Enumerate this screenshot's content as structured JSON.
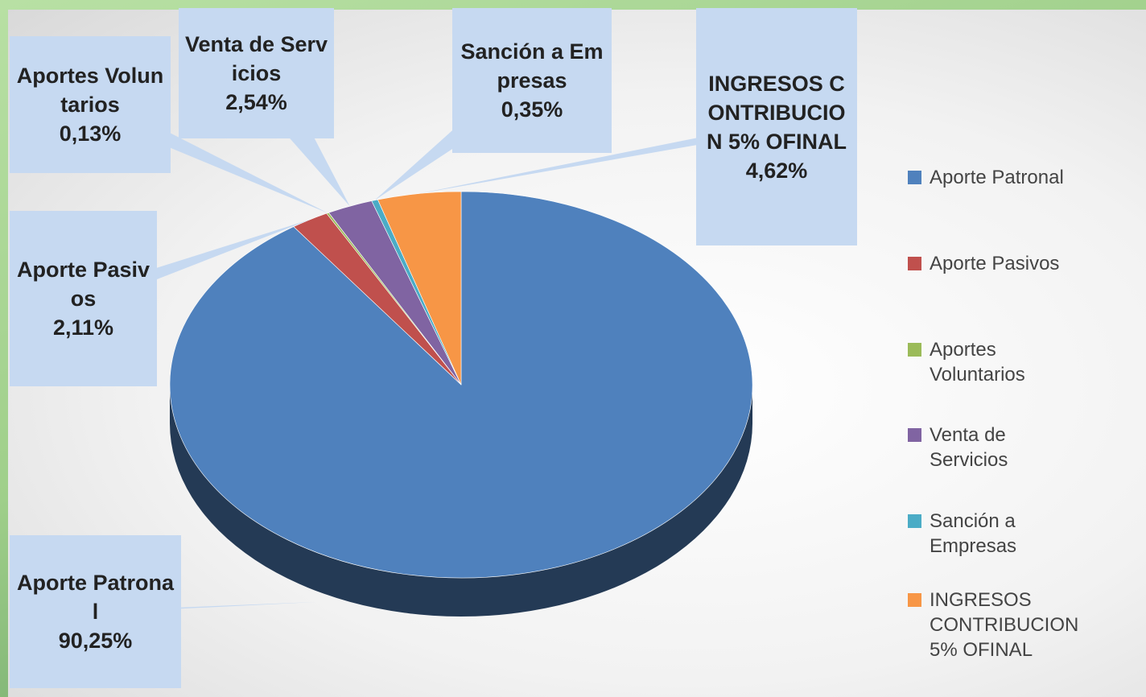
{
  "chart_data": {
    "type": "pie",
    "categories": [
      "Aporte Patronal",
      "Aporte Pasivos",
      "Aportes Voluntarios",
      "Venta de Servicios",
      "Sanción a Empresas",
      "INGRESOS CONTRIBUCION 5% OFINAL"
    ],
    "values": [
      90.25,
      2.11,
      0.13,
      2.54,
      0.35,
      4.62
    ],
    "value_labels": [
      "90,25%",
      "2,11%",
      "0,13%",
      "2,54%",
      "0,35%",
      "4,62%"
    ],
    "colors": [
      "#4f81bd",
      "#c0504d",
      "#9bbb59",
      "#8064a2",
      "#4bacc6",
      "#f79646"
    ],
    "legend": "right"
  }
}
